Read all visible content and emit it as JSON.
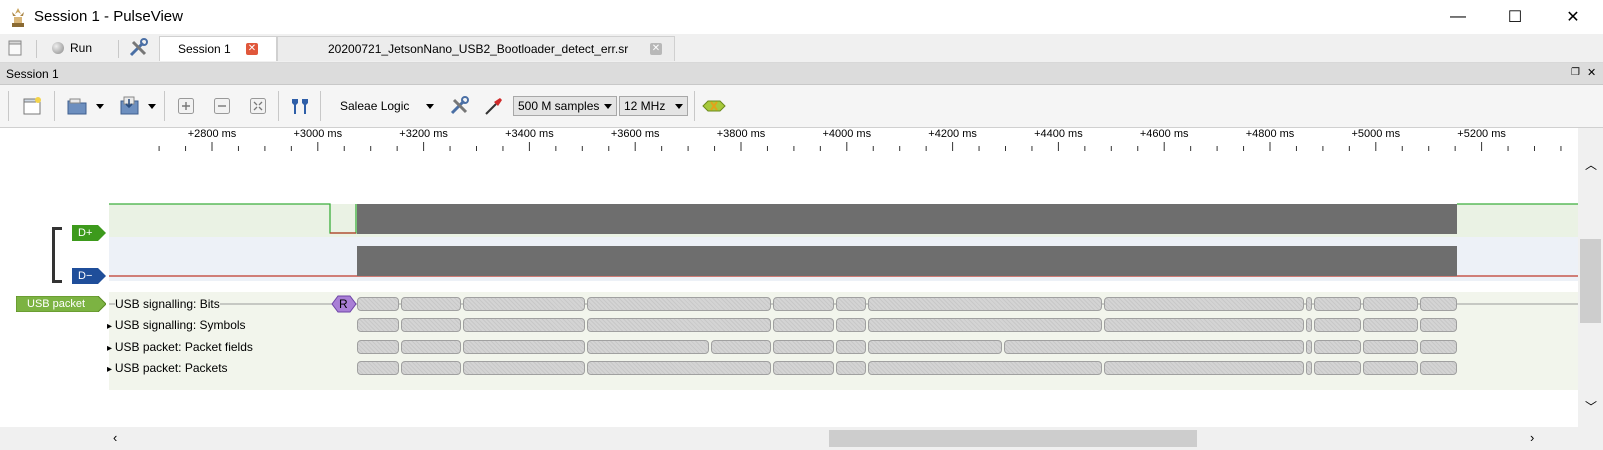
{
  "window": {
    "title": "Session 1 - PulseView",
    "minimize_glyph": "—",
    "maximize_glyph": "☐",
    "close_glyph": "✕"
  },
  "tabs": {
    "run_label": "Run",
    "items": [
      {
        "label": "Session 1",
        "active": true
      },
      {
        "label": "20200721_JetsonNano_USB2_Bootloader_detect_err.sr",
        "active": false
      }
    ]
  },
  "session": {
    "title": "Session 1"
  },
  "toolbar": {
    "device": "Saleae Logic",
    "samples": "500 M samples",
    "samplerate": "12 MHz"
  },
  "ruler": {
    "labels": [
      "+2800 ms",
      "+3000 ms",
      "+3200 ms",
      "+3400 ms",
      "+3600 ms",
      "+3800 ms",
      "+4000 ms",
      "+4200 ms",
      "+4400 ms",
      "+4600 ms",
      "+4800 ms",
      "+5000 ms",
      "+5200 ms"
    ]
  },
  "channels": [
    {
      "name": "D+",
      "color": "#3d9a1c"
    },
    {
      "name": "D−",
      "color": "#1f4e9a"
    }
  ],
  "decoder": {
    "tag": "USB packet",
    "tag_color": "#7cb342",
    "rows": [
      {
        "label": "USB signalling: Bits",
        "expandable": false
      },
      {
        "label": "USB signalling: Symbols",
        "expandable": true
      },
      {
        "label": "USB packet: Packet fields",
        "expandable": true
      },
      {
        "label": "USB packet: Packets",
        "expandable": true
      }
    ],
    "reset_marker": "R"
  },
  "colors": {
    "signal_fill": "#6e6e6e",
    "low_line": "#c0392b",
    "high_line": "#3cae3c",
    "decoder_bg": "#f2f5ec",
    "dplus_bg": "#eaf2e4",
    "dminus_bg": "#edf1f7"
  }
}
